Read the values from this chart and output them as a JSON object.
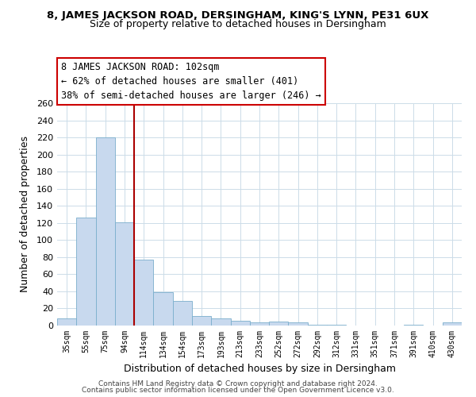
{
  "title_line1": "8, JAMES JACKSON ROAD, DERSINGHAM, KING'S LYNN, PE31 6UX",
  "title_line2": "Size of property relative to detached houses in Dersingham",
  "xlabel": "Distribution of detached houses by size in Dersingham",
  "ylabel": "Number of detached properties",
  "bar_color": "#c8d9ee",
  "bar_edge_color": "#7aaecc",
  "vline_color": "#aa0000",
  "vline_x_index": 3,
  "categories": [
    "35sqm",
    "55sqm",
    "75sqm",
    "94sqm",
    "114sqm",
    "134sqm",
    "154sqm",
    "173sqm",
    "193sqm",
    "213sqm",
    "233sqm",
    "252sqm",
    "272sqm",
    "292sqm",
    "312sqm",
    "331sqm",
    "351sqm",
    "371sqm",
    "391sqm",
    "410sqm",
    "430sqm"
  ],
  "values": [
    8,
    126,
    220,
    121,
    77,
    39,
    29,
    11,
    8,
    6,
    4,
    5,
    4,
    1,
    1,
    0,
    0,
    0,
    1,
    0,
    4
  ],
  "ylim": [
    0,
    260
  ],
  "yticks": [
    0,
    20,
    40,
    60,
    80,
    100,
    120,
    140,
    160,
    180,
    200,
    220,
    240,
    260
  ],
  "annotation_title": "8 JAMES JACKSON ROAD: 102sqm",
  "annotation_line1": "← 62% of detached houses are smaller (401)",
  "annotation_line2": "38% of semi-detached houses are larger (246) →",
  "footer_line1": "Contains HM Land Registry data © Crown copyright and database right 2024.",
  "footer_line2": "Contains public sector information licensed under the Open Government Licence v3.0.",
  "background_color": "#ffffff",
  "grid_color": "#ccdce8",
  "ann_box_color": "#cc0000",
  "title_fontsize": 9.5,
  "subtitle_fontsize": 9,
  "ylabel_fontsize": 9,
  "xlabel_fontsize": 9
}
